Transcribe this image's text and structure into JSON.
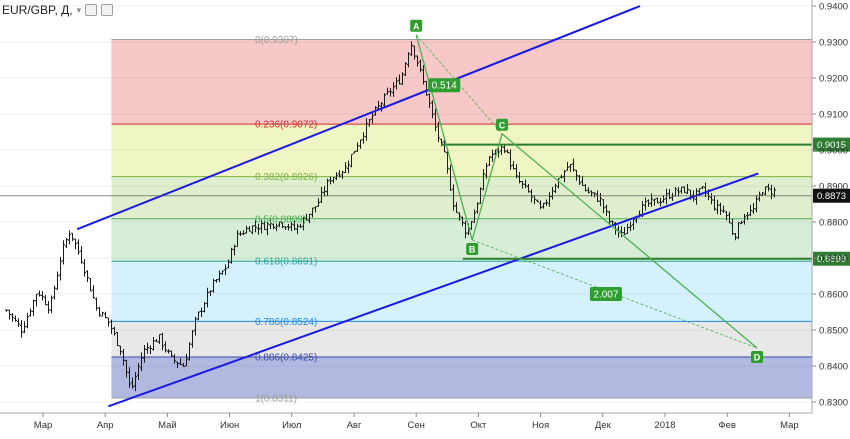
{
  "header": {
    "title": "EUR/GBP, Д,",
    "caret_icon": "chevron-down-icon"
  },
  "chart_data": {
    "type": "bar",
    "symbol": "EUR/GBP",
    "timeframe": "Д",
    "ylim": [
      0.83,
      0.94
    ],
    "y_ticks": [
      "0.9400",
      "0.9300",
      "0.9200",
      "0.9100",
      "0.9000",
      "0.8900",
      "0.8800",
      "0.8700",
      "0.8600",
      "0.8500",
      "0.8400",
      "0.8300"
    ],
    "x_ticks": [
      {
        "label": "Мар",
        "t": 0
      },
      {
        "label": "Апр",
        "t": 1
      },
      {
        "label": "Май",
        "t": 2
      },
      {
        "label": "Июн",
        "t": 3
      },
      {
        "label": "Июл",
        "t": 4
      },
      {
        "label": "Авг",
        "t": 5
      },
      {
        "label": "Сен",
        "t": 6
      },
      {
        "label": "Окт",
        "t": 7
      },
      {
        "label": "Ноя",
        "t": 8
      },
      {
        "label": "Дек",
        "t": 9
      },
      {
        "label": "2018",
        "t": 10
      },
      {
        "label": "Фев",
        "t": 11
      },
      {
        "label": "Мар",
        "t": 12
      }
    ],
    "price_path": [
      [
        -0.6,
        0.8555
      ],
      [
        -0.35,
        0.85
      ],
      [
        -0.1,
        0.861
      ],
      [
        0.1,
        0.856
      ],
      [
        0.3,
        0.872
      ],
      [
        0.42,
        0.8775
      ],
      [
        0.6,
        0.87
      ],
      [
        0.85,
        0.856
      ],
      [
        1.05,
        0.852
      ],
      [
        1.25,
        0.844
      ],
      [
        1.4,
        0.833
      ],
      [
        1.6,
        0.844
      ],
      [
        1.85,
        0.848
      ],
      [
        2.05,
        0.842
      ],
      [
        2.25,
        0.84
      ],
      [
        2.45,
        0.853
      ],
      [
        2.7,
        0.862
      ],
      [
        2.95,
        0.868
      ],
      [
        3.1,
        0.876
      ],
      [
        3.3,
        0.8785
      ],
      [
        3.55,
        0.879
      ],
      [
        3.8,
        0.88
      ],
      [
        4.05,
        0.878
      ],
      [
        4.2,
        0.881
      ],
      [
        4.4,
        0.885
      ],
      [
        4.6,
        0.892
      ],
      [
        4.85,
        0.895
      ],
      [
        5.05,
        0.902
      ],
      [
        5.3,
        0.91
      ],
      [
        5.55,
        0.916
      ],
      [
        5.75,
        0.92
      ],
      [
        5.9,
        0.93
      ],
      [
        6.0,
        0.925
      ],
      [
        6.15,
        0.916
      ],
      [
        6.3,
        0.906
      ],
      [
        6.45,
        0.898
      ],
      [
        6.6,
        0.884
      ],
      [
        6.8,
        0.877
      ],
      [
        6.95,
        0.884
      ],
      [
        7.15,
        0.898
      ],
      [
        7.4,
        0.901
      ],
      [
        7.6,
        0.892
      ],
      [
        7.8,
        0.888
      ],
      [
        8.0,
        0.883
      ],
      [
        8.2,
        0.89
      ],
      [
        8.45,
        0.896
      ],
      [
        8.7,
        0.889
      ],
      [
        8.95,
        0.886
      ],
      [
        9.1,
        0.88
      ],
      [
        9.3,
        0.876
      ],
      [
        9.5,
        0.882
      ],
      [
        9.7,
        0.885
      ],
      [
        9.9,
        0.886
      ],
      [
        10.1,
        0.888
      ],
      [
        10.3,
        0.889
      ],
      [
        10.45,
        0.887
      ],
      [
        10.6,
        0.889
      ],
      [
        10.8,
        0.884
      ],
      [
        10.95,
        0.883
      ],
      [
        11.1,
        0.876
      ],
      [
        11.25,
        0.882
      ],
      [
        11.4,
        0.883
      ],
      [
        11.55,
        0.889
      ],
      [
        11.75,
        0.8885
      ]
    ],
    "fibonacci": {
      "t_start": 1.1,
      "t_end": 12.38,
      "levels": [
        {
          "label": "0(0.9307)",
          "price": 0.9307,
          "color": "#9e9e9e",
          "fill": "#ef9a9a",
          "fill_opacity": 0.55
        },
        {
          "label": "0.236(0.9072)",
          "price": 0.9072,
          "color": "#d32f2f",
          "fill": "#e6ee9c",
          "fill_opacity": 0.6
        },
        {
          "label": "0.382(0.8926)",
          "price": 0.8926,
          "color": "#7cb342",
          "fill": "#c5e1a5",
          "fill_opacity": 0.55
        },
        {
          "label": "0.5(0.8809)",
          "price": 0.8809,
          "color": "#4caf50",
          "fill": "#a5d6a7",
          "fill_opacity": 0.45
        },
        {
          "label": "0.618(0.8691)",
          "price": 0.8691,
          "color": "#26a69a",
          "fill": "#b3e5fc",
          "fill_opacity": 0.55
        },
        {
          "label": "0.786(0.8524)",
          "price": 0.8524,
          "color": "#1e88e5",
          "fill": "#e0e0e0",
          "fill_opacity": 0.75
        },
        {
          "label": "0.886(0.8425)",
          "price": 0.8425,
          "color": "#3949ab",
          "fill": "#9fa8da",
          "fill_opacity": 0.8
        },
        {
          "label": "1(0.8311)",
          "price": 0.8311,
          "color": "#9e9e9e",
          "fill": null,
          "fill_opacity": 0
        }
      ]
    },
    "channel": {
      "color": "#1a1ae6",
      "upper": [
        [
          0.55,
          0.878
        ],
        [
          9.6,
          0.94
        ]
      ],
      "lower": [
        [
          1.05,
          0.8288
        ],
        [
          11.5,
          0.8935
        ]
      ]
    },
    "abcd": {
      "color": "#4caf50",
      "points": [
        {
          "name": "A",
          "t": 6.0,
          "price": 0.932
        },
        {
          "name": "B",
          "t": 6.9,
          "price": 0.875
        },
        {
          "name": "C",
          "t": 7.38,
          "price": 0.9045
        },
        {
          "name": "D",
          "t": 11.48,
          "price": 0.845
        }
      ],
      "ratios": [
        {
          "label": "0.514",
          "t": 6.45,
          "price": 0.918
        },
        {
          "label": "2.007",
          "t": 9.05,
          "price": 0.86
        }
      ]
    },
    "horizontal_levels": [
      {
        "label": "0.9015",
        "price": 0.9015,
        "t_start": 6.4,
        "color": "#2e7d32"
      },
      {
        "label": "0.8698",
        "price": 0.8698,
        "t_start": 6.75,
        "color": "#2e7d32"
      }
    ],
    "current_price": {
      "label": "0.8873",
      "price": 0.8873
    }
  }
}
